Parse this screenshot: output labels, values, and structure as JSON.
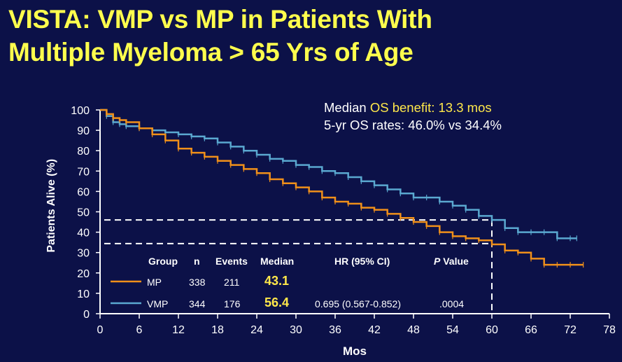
{
  "title_line1": "VISTA: VMP vs MP in Patients With",
  "title_line2": "Multiple Myeloma > 65 Yrs of Age",
  "note": {
    "line1_a": "Median ",
    "line1_b": "OS benefit: 13.3 mos",
    "line2": "5-yr OS rates: 46.0% vs 34.4%"
  },
  "table": {
    "headers": {
      "group": "Group",
      "n": "n",
      "events": "Events",
      "median": "Median",
      "hr": "HR (95% CI)",
      "p_italic": "P",
      "p_rest": " Value"
    },
    "rows": [
      {
        "group": "MP",
        "n": "338",
        "events": "211",
        "median": "43.1",
        "hr": "",
        "p": ""
      },
      {
        "group": "VMP",
        "n": "344",
        "events": "176",
        "median": "56.4",
        "hr": "0.695 (0.567-0.852)",
        "p": ".0004"
      }
    ]
  },
  "colors": {
    "MP": "#f0901a",
    "VMP": "#5aa8d0",
    "background": "#0c1148",
    "title": "#ffff4d",
    "highlight": "#ffe84a"
  },
  "chart_data": {
    "type": "line",
    "xlabel": "Mos",
    "ylabel": "Patients Alive (%)",
    "xlim": [
      0,
      78
    ],
    "ylim": [
      0,
      100
    ],
    "xticks": [
      0,
      6,
      12,
      18,
      24,
      30,
      36,
      42,
      48,
      54,
      60,
      66,
      72,
      78
    ],
    "yticks": [
      0,
      10,
      20,
      30,
      40,
      50,
      60,
      70,
      80,
      90,
      100
    ],
    "grid": false,
    "series": [
      {
        "name": "VMP",
        "color": "#5aa8d0",
        "x": [
          0,
          1,
          2,
          3,
          4,
          6,
          8,
          10,
          12,
          14,
          16,
          18,
          20,
          22,
          24,
          26,
          28,
          30,
          32,
          34,
          36,
          38,
          40,
          42,
          44,
          46,
          48,
          50,
          52,
          54,
          56,
          58,
          60,
          62,
          64,
          66,
          68,
          70,
          72,
          73
        ],
        "y": [
          100,
          97,
          94,
          93,
          92,
          91,
          90,
          89,
          88,
          87,
          86,
          84,
          82,
          80,
          78,
          76,
          75,
          73,
          72,
          70,
          69,
          67,
          65,
          63,
          61,
          59,
          57,
          57,
          55,
          53,
          51,
          48,
          46,
          42,
          40,
          40,
          40,
          37,
          37,
          37
        ]
      },
      {
        "name": "MP",
        "color": "#f0901a",
        "x": [
          0,
          1,
          2,
          3,
          4,
          6,
          8,
          10,
          12,
          14,
          16,
          18,
          20,
          22,
          24,
          26,
          28,
          30,
          32,
          34,
          36,
          38,
          40,
          42,
          44,
          46,
          48,
          50,
          52,
          54,
          56,
          58,
          60,
          62,
          64,
          66,
          68,
          70,
          72,
          74
        ],
        "y": [
          100,
          98,
          96,
          95,
          94,
          91,
          88,
          85,
          81,
          79,
          77,
          75,
          73,
          71,
          69,
          66,
          64,
          62,
          60,
          57,
          55,
          54,
          52,
          51,
          49,
          47,
          45,
          43,
          40,
          38,
          37,
          36,
          34,
          31,
          30,
          27,
          24,
          24,
          24,
          24
        ]
      }
    ],
    "reference_lines": {
      "x": 60,
      "y": [
        46,
        34.4
      ]
    }
  },
  "axis_labels": {
    "x": "Mos",
    "y": "Patients Alive (%)"
  }
}
